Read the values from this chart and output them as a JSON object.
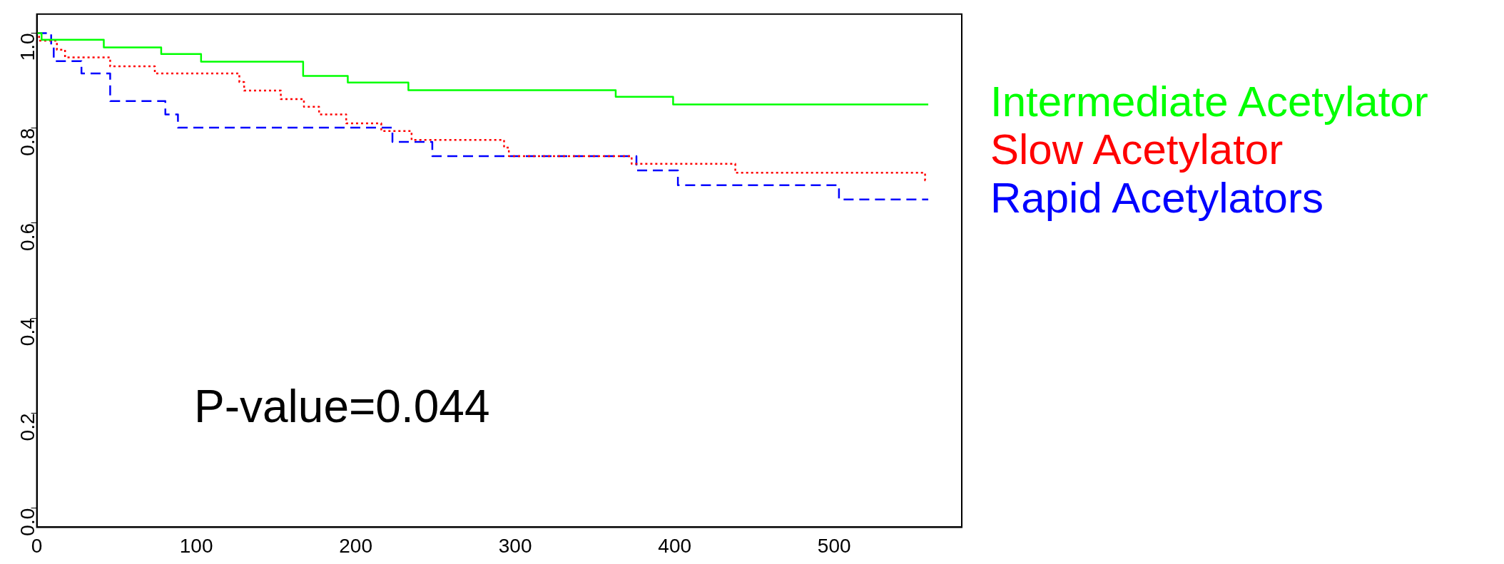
{
  "chart_data": {
    "type": "step",
    "xlim": [
      0,
      580
    ],
    "xticks": [
      0,
      100,
      200,
      300,
      400,
      500
    ],
    "ylim": [
      -0.04,
      1.04
    ],
    "yticks": [
      {
        "value": 0,
        "label": "0.0"
      },
      0.2,
      0.4,
      0.6,
      0.8,
      {
        "value": 1,
        "label": "1.0"
      }
    ],
    "grid": false,
    "legend": "right",
    "marker": "none",
    "annotations": [
      "P-value=0.044"
    ],
    "series": [
      {
        "name": "Intermediate Acetylator",
        "color": "#00ff00",
        "line_style": "solid",
        "x": [
          0,
          3,
          42,
          78,
          103,
          167,
          195,
          233,
          363,
          399,
          559
        ],
        "values": [
          1.0,
          0.986,
          0.97,
          0.956,
          0.94,
          0.91,
          0.896,
          0.88,
          0.866,
          0.85,
          0.85
        ]
      },
      {
        "name": "Slow Acetylator",
        "color": "#ff0000",
        "line_style": "dotted",
        "x": [
          0,
          1.4,
          12.6,
          17.7,
          46,
          74,
          127,
          130,
          153,
          167.5,
          177,
          194,
          216,
          235,
          293,
          296,
          373,
          438,
          557,
          559
        ],
        "values": [
          1.0,
          0.984,
          0.965,
          0.949,
          0.93,
          0.915,
          0.897,
          0.879,
          0.861,
          0.845,
          0.829,
          0.81,
          0.794,
          0.775,
          0.759,
          0.741,
          0.725,
          0.706,
          0.69,
          0.69
        ]
      },
      {
        "name": "Rapid Acetylators",
        "color": "#0000ff",
        "line_style": "dashed",
        "x": [
          0,
          9,
          10.6,
          28,
          46,
          80.6,
          88.5,
          223,
          248,
          376,
          402,
          503,
          559
        ],
        "values": [
          1.0,
          0.97,
          0.941,
          0.915,
          0.857,
          0.829,
          0.801,
          0.771,
          0.741,
          0.711,
          0.68,
          0.65,
          0.65
        ]
      }
    ]
  }
}
